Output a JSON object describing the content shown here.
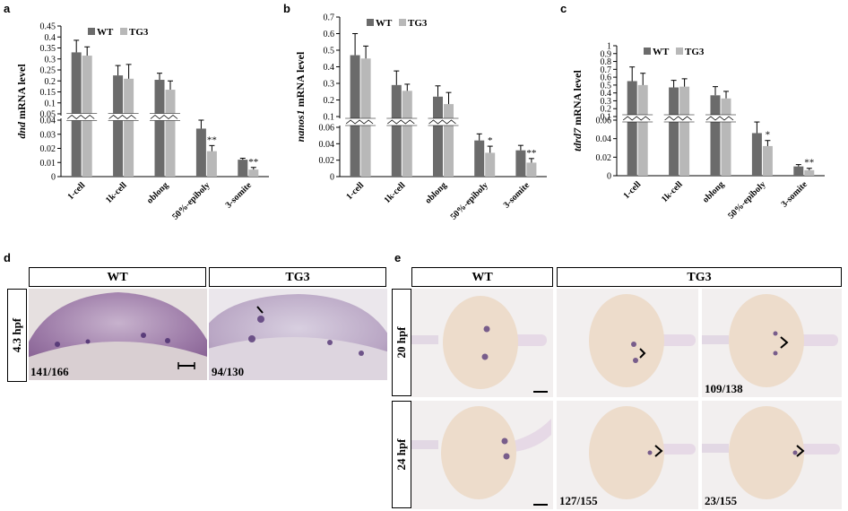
{
  "panels": {
    "a": {
      "label": "a"
    },
    "b": {
      "label": "b"
    },
    "c": {
      "label": "c"
    },
    "d": {
      "label": "d"
    },
    "e": {
      "label": "e"
    }
  },
  "chart_data": [
    {
      "type": "bar",
      "panel": "a",
      "ylabel_gene": "dnd",
      "ylabel_rest": " mRNA  level",
      "categories": [
        "1-cell",
        "1k-cell",
        "oblong",
        "50%-epiboly",
        "3-somite"
      ],
      "series": [
        {
          "name": "WT",
          "values": [
            0.33,
            0.225,
            0.205,
            0.034,
            0.012
          ],
          "errors": [
            0.055,
            0.045,
            0.03,
            0.006,
            0.001
          ]
        },
        {
          "name": "TG3",
          "values": [
            0.315,
            0.21,
            0.16,
            0.018,
            0.005
          ],
          "errors": [
            0.04,
            0.065,
            0.04,
            0.004,
            0.0015
          ]
        }
      ],
      "upper_ticks": [
        "0.45",
        "0.4",
        "0.35",
        "0.3",
        "0.25",
        "0.2",
        "0.15",
        "0.1",
        "0.05"
      ],
      "lower_ticks": [
        "0.04",
        "0.03",
        "0.02",
        "0.01",
        "0"
      ],
      "upper_range": [
        0.05,
        0.45
      ],
      "lower_range": [
        0,
        0.04
      ],
      "significance": [
        {
          "index": 3,
          "text": "**"
        },
        {
          "index": 4,
          "text": "**"
        }
      ]
    },
    {
      "type": "bar",
      "panel": "b",
      "ylabel_gene": "nanos1",
      "ylabel_rest": " mRNA  level",
      "categories": [
        "1-cell",
        "1k-cell",
        "oblong",
        "50%-epiboly",
        "3-somite"
      ],
      "series": [
        {
          "name": "WT",
          "values": [
            0.47,
            0.29,
            0.22,
            0.044,
            0.032
          ],
          "errors": [
            0.13,
            0.085,
            0.065,
            0.008,
            0.006
          ]
        },
        {
          "name": "TG3",
          "values": [
            0.45,
            0.255,
            0.175,
            0.029,
            0.017
          ],
          "errors": [
            0.075,
            0.04,
            0.07,
            0.008,
            0.005
          ]
        }
      ],
      "upper_ticks": [
        "0.7",
        "0.6",
        "0.5",
        "0.4",
        "0.3",
        "0.2",
        "0.1"
      ],
      "lower_ticks": [
        "0.06",
        "0.04",
        "0.02",
        "0"
      ],
      "upper_range": [
        0.1,
        0.7
      ],
      "lower_range": [
        0,
        0.06
      ],
      "significance": [
        {
          "index": 3,
          "text": "*"
        },
        {
          "index": 4,
          "text": "**"
        }
      ]
    },
    {
      "type": "bar",
      "panel": "c",
      "ylabel_gene": "tdrd7",
      "ylabel_rest": " mRNA  level",
      "categories": [
        "1-cell",
        "1k-cell",
        "oblong",
        "50%-epiboly",
        "3-somite"
      ],
      "series": [
        {
          "name": "WT",
          "values": [
            0.55,
            0.47,
            0.37,
            0.046,
            0.01
          ],
          "errors": [
            0.18,
            0.09,
            0.11,
            0.012,
            0.002
          ]
        },
        {
          "name": "TG3",
          "values": [
            0.5,
            0.48,
            0.33,
            0.032,
            0.006
          ],
          "errors": [
            0.15,
            0.1,
            0.09,
            0.006,
            0.002
          ]
        }
      ],
      "upper_ticks": [
        "1",
        "0.9",
        "0.8",
        "0.7",
        "0.6",
        "0.5",
        "0.4",
        "0.3",
        "0.2",
        "0.1"
      ],
      "lower_ticks": [
        "0.06",
        "0.04",
        "0.02",
        "0"
      ],
      "upper_range": [
        0.1,
        1.0
      ],
      "lower_range": [
        0,
        0.06
      ],
      "significance": [
        {
          "index": 3,
          "text": "*"
        },
        {
          "index": 4,
          "text": "**"
        }
      ]
    }
  ],
  "legend": {
    "wt": "WT",
    "tg3": "TG3"
  },
  "colors": {
    "wt": "#6b6b6b",
    "tg3": "#b8b8b8",
    "stain": "#5a3d7a"
  },
  "panel_d": {
    "headers": [
      "WT",
      "TG3"
    ],
    "row_label": "4.3 hpf",
    "counts": [
      "141/166",
      "94/130"
    ]
  },
  "panel_e": {
    "headers": [
      "WT",
      "TG3"
    ],
    "row_labels": [
      "20 hpf",
      "24 hpf"
    ],
    "counts": [
      "109/138",
      "127/155",
      "23/155"
    ]
  }
}
